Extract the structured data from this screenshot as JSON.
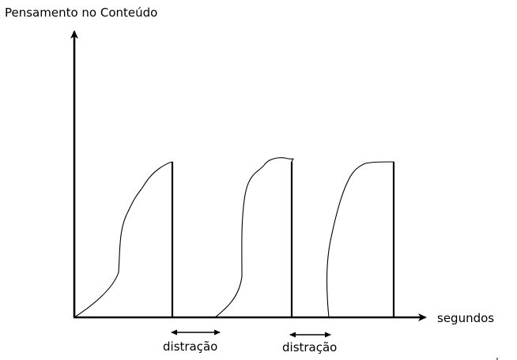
{
  "y_axis_label": "Pensamento no Conteúdo",
  "x_axis_label": "segundos",
  "distraction_labels": [
    "distração",
    "distração"
  ],
  "colors": {
    "line": "#000000",
    "background": "#ffffff"
  }
}
